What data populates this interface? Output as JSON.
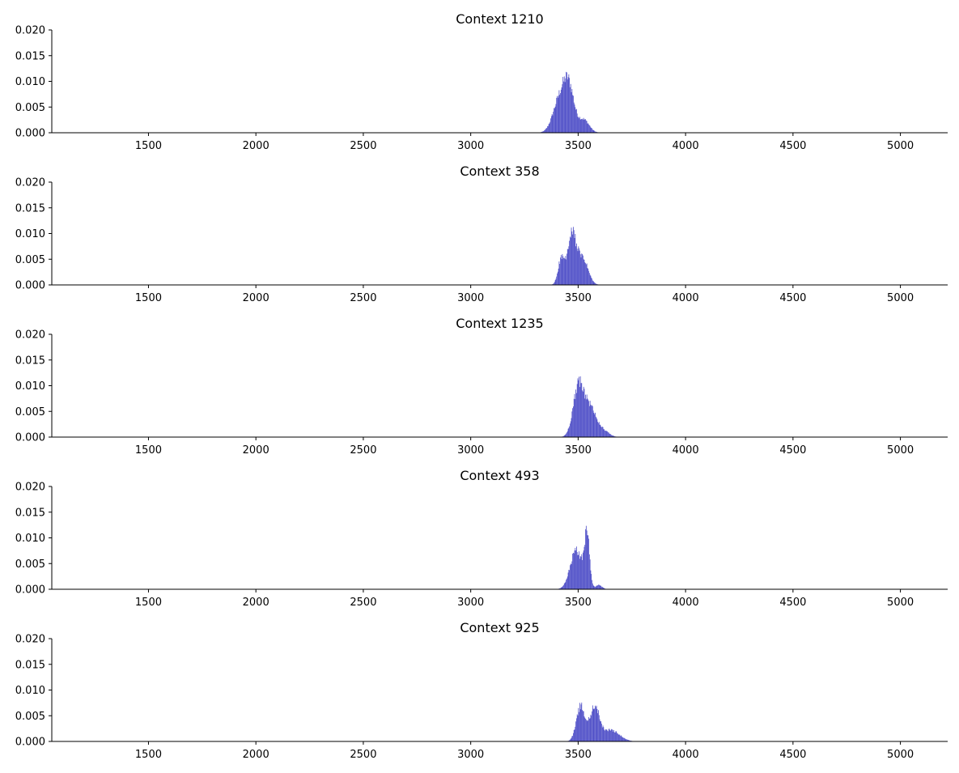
{
  "colors": {
    "bar": "#4f4fc7",
    "axis": "#000000",
    "background": "#ffffff"
  },
  "chart_data": [
    {
      "type": "bar",
      "title": "Context 1210",
      "xlabel": "",
      "ylabel": "",
      "xlim": [
        1050,
        5220
      ],
      "ylim": [
        0,
        0.02
      ],
      "xticks": [
        "1500",
        "2000",
        "2500",
        "3000",
        "3500",
        "4000",
        "4500",
        "5000"
      ],
      "yticks": [
        "0.000",
        "0.005",
        "0.010",
        "0.015",
        "0.020"
      ],
      "grid": false,
      "peaks": [
        {
          "center": 3410,
          "sigma": 30,
          "height": 0.006
        },
        {
          "center": 3455,
          "sigma": 25,
          "height": 0.0085
        },
        {
          "center": 3525,
          "sigma": 25,
          "height": 0.0025
        }
      ]
    },
    {
      "type": "bar",
      "title": "Context 358",
      "xlabel": "",
      "ylabel": "",
      "xlim": [
        1050,
        5220
      ],
      "ylim": [
        0,
        0.02
      ],
      "xticks": [
        "1500",
        "2000",
        "2500",
        "3000",
        "3500",
        "4000",
        "4500",
        "5000"
      ],
      "yticks": [
        "0.000",
        "0.005",
        "0.010",
        "0.015",
        "0.020"
      ],
      "grid": false,
      "peaks": [
        {
          "center": 3420,
          "sigma": 15,
          "height": 0.005
        },
        {
          "center": 3470,
          "sigma": 20,
          "height": 0.0095
        },
        {
          "center": 3520,
          "sigma": 25,
          "height": 0.005
        }
      ]
    },
    {
      "type": "bar",
      "title": "Context 1235",
      "xlabel": "",
      "ylabel": "",
      "xlim": [
        1050,
        5220
      ],
      "ylim": [
        0,
        0.02
      ],
      "xticks": [
        "1500",
        "2000",
        "2500",
        "3000",
        "3500",
        "4000",
        "4500",
        "5000"
      ],
      "yticks": [
        "0.000",
        "0.005",
        "0.010",
        "0.015",
        "0.020"
      ],
      "grid": false,
      "peaks": [
        {
          "center": 3500,
          "sigma": 25,
          "height": 0.0095
        },
        {
          "center": 3555,
          "sigma": 30,
          "height": 0.0055
        },
        {
          "center": 3620,
          "sigma": 25,
          "height": 0.001
        }
      ]
    },
    {
      "type": "bar",
      "title": "Context 493",
      "xlabel": "",
      "ylabel": "",
      "xlim": [
        1050,
        5220
      ],
      "ylim": [
        0,
        0.02
      ],
      "xticks": [
        "1500",
        "2000",
        "2500",
        "3000",
        "3500",
        "4000",
        "4500",
        "5000"
      ],
      "yticks": [
        "0.000",
        "0.005",
        "0.010",
        "0.015",
        "0.020"
      ],
      "grid": false,
      "peaks": [
        {
          "center": 3490,
          "sigma": 28,
          "height": 0.0075
        },
        {
          "center": 3540,
          "sigma": 12,
          "height": 0.01
        },
        {
          "center": 3595,
          "sigma": 15,
          "height": 0.0008
        }
      ]
    },
    {
      "type": "bar",
      "title": "Context 925",
      "xlabel": "",
      "ylabel": "",
      "xlim": [
        1050,
        5220
      ],
      "ylim": [
        0,
        0.02
      ],
      "xticks": [
        "1500",
        "2000",
        "2500",
        "3000",
        "3500",
        "4000",
        "4500",
        "5000"
      ],
      "yticks": [
        "0.000",
        "0.005",
        "0.010",
        "0.015",
        "0.020"
      ],
      "grid": false,
      "peaks": [
        {
          "center": 3510,
          "sigma": 20,
          "height": 0.0068
        },
        {
          "center": 3575,
          "sigma": 22,
          "height": 0.0065
        },
        {
          "center": 3650,
          "sigma": 40,
          "height": 0.0022
        }
      ]
    }
  ]
}
